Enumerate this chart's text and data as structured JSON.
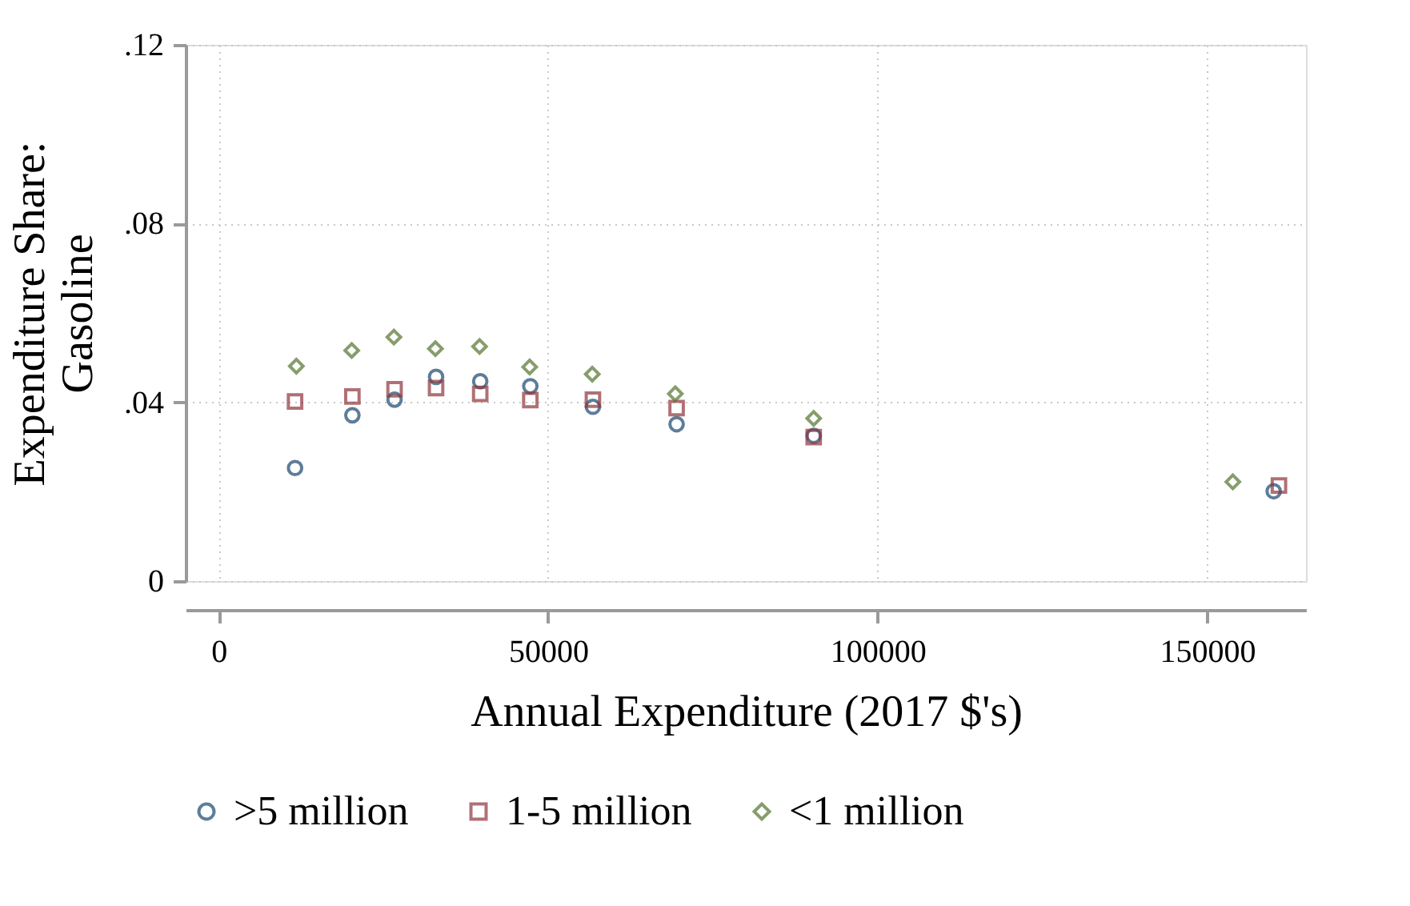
{
  "chart_data": {
    "type": "scatter",
    "xlabel": "Annual Expenditure (2017 $'s)",
    "ylabel": "Expenditure Share:\nGasoline",
    "xlim": [
      -5000,
      165000
    ],
    "xticks": [
      0,
      50000,
      100000,
      150000
    ],
    "ylim": [
      0,
      0.12
    ],
    "yticks": [
      {
        "value": 0,
        "label": "0"
      },
      {
        "value": 0.04,
        "label": ".04"
      },
      {
        "value": 0.08,
        "label": ".08"
      },
      {
        "value": 0.12,
        "label": ".12"
      }
    ],
    "grid": true,
    "legend": "bottom",
    "series": [
      {
        "name": ">5 million",
        "color": "#1a476f",
        "marker": "circle",
        "x": [
          11600,
          20300,
          26700,
          33000,
          39700,
          47300,
          56800,
          69500,
          90300,
          160100
        ],
        "values": [
          0.0253,
          0.0371,
          0.0406,
          0.0457,
          0.0447,
          0.0436,
          0.039,
          0.0351,
          0.0325,
          0.0201
        ]
      },
      {
        "name": "1-5 million",
        "color": "#90353b",
        "marker": "square",
        "x": [
          11600,
          20300,
          26700,
          33000,
          39700,
          47300,
          56800,
          69500,
          90300,
          160900
        ],
        "values": [
          0.0402,
          0.0413,
          0.0429,
          0.0432,
          0.0419,
          0.0405,
          0.0406,
          0.0387,
          0.0322,
          0.0214
        ]
      },
      {
        "name": "<1 million",
        "color": "#55752f",
        "marker": "diamond",
        "x": [
          11800,
          20200,
          26600,
          32900,
          39600,
          47200,
          56700,
          69300,
          90300,
          153900
        ],
        "values": [
          0.0481,
          0.0516,
          0.0546,
          0.052,
          0.0525,
          0.0479,
          0.0463,
          0.0419,
          0.0364,
          0.0222
        ]
      }
    ]
  }
}
